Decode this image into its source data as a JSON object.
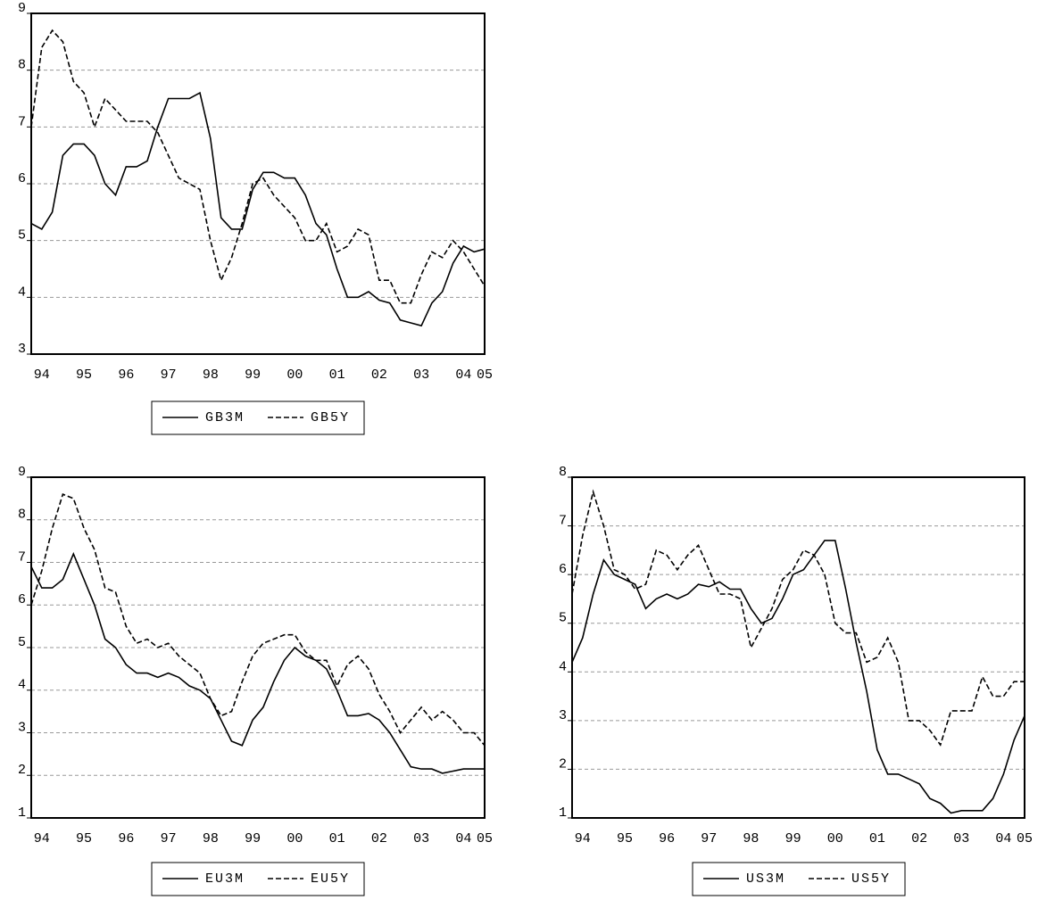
{
  "chart_data": [
    {
      "type": "line",
      "categories": [
        null,
        "94",
        null,
        null,
        null,
        "95",
        null,
        null,
        null,
        "96",
        null,
        null,
        null,
        "97",
        null,
        null,
        null,
        "98",
        null,
        null,
        null,
        "99",
        null,
        null,
        null,
        "00",
        null,
        null,
        null,
        "01",
        null,
        null,
        null,
        "02",
        null,
        null,
        null,
        "03",
        null,
        null,
        null,
        "04",
        null,
        "05"
      ],
      "series": [
        {
          "name": "GB3M",
          "color": "#000000",
          "style": "solid",
          "values": [
            5.3,
            5.2,
            5.5,
            6.5,
            6.7,
            6.7,
            6.5,
            6.0,
            5.8,
            6.3,
            6.3,
            6.4,
            7.0,
            7.5,
            7.5,
            7.5,
            7.6,
            6.8,
            5.4,
            5.2,
            5.2,
            5.9,
            6.2,
            6.2,
            6.1,
            6.1,
            5.8,
            5.3,
            5.1,
            4.5,
            4.0,
            4.0,
            4.1,
            3.95,
            3.9,
            3.6,
            3.55,
            3.5,
            3.9,
            4.1,
            4.6,
            4.9,
            4.8,
            4.85
          ]
        },
        {
          "name": "GB5Y",
          "color": "#000000",
          "style": "dashed",
          "values": [
            7.0,
            8.4,
            8.7,
            8.5,
            7.8,
            7.6,
            7.0,
            7.5,
            7.3,
            7.1,
            7.1,
            7.1,
            6.9,
            6.5,
            6.1,
            6.0,
            5.9,
            5.0,
            4.3,
            4.7,
            5.3,
            6.0,
            6.1,
            5.8,
            5.6,
            5.4,
            5.0,
            5.0,
            5.3,
            4.8,
            4.9,
            5.2,
            5.1,
            4.3,
            4.3,
            3.9,
            3.9,
            4.4,
            4.8,
            4.7,
            5.0,
            4.8,
            4.5,
            4.2
          ]
        }
      ],
      "ylim": [
        3,
        9
      ],
      "yticks": [
        3,
        4,
        5,
        6,
        7,
        8,
        9
      ],
      "grid": true
    },
    {
      "type": "line",
      "categories": [
        null,
        "94",
        null,
        null,
        null,
        "95",
        null,
        null,
        null,
        "96",
        null,
        null,
        null,
        "97",
        null,
        null,
        null,
        "98",
        null,
        null,
        null,
        "99",
        null,
        null,
        null,
        "00",
        null,
        null,
        null,
        "01",
        null,
        null,
        null,
        "02",
        null,
        null,
        null,
        "03",
        null,
        null,
        null,
        "04",
        null,
        "05"
      ],
      "series": [
        {
          "name": "EU3M",
          "color": "#000000",
          "style": "solid",
          "values": [
            6.9,
            6.4,
            6.4,
            6.6,
            7.2,
            6.6,
            6.0,
            5.2,
            5.0,
            4.6,
            4.4,
            4.4,
            4.3,
            4.4,
            4.3,
            4.1,
            4.0,
            3.8,
            3.3,
            2.8,
            2.7,
            3.3,
            3.6,
            4.2,
            4.7,
            5.0,
            4.8,
            4.7,
            4.5,
            4.0,
            3.4,
            3.4,
            3.45,
            3.3,
            3.0,
            2.6,
            2.2,
            2.15,
            2.15,
            2.05,
            2.1,
            2.15,
            2.15,
            2.15
          ]
        },
        {
          "name": "EU5Y",
          "color": "#000000",
          "style": "dashed",
          "values": [
            6.0,
            6.8,
            7.8,
            8.6,
            8.5,
            7.8,
            7.3,
            6.4,
            6.3,
            5.5,
            5.1,
            5.2,
            5.0,
            5.1,
            4.8,
            4.6,
            4.4,
            3.8,
            3.4,
            3.5,
            4.2,
            4.8,
            5.1,
            5.2,
            5.3,
            5.3,
            4.9,
            4.7,
            4.7,
            4.1,
            4.6,
            4.8,
            4.5,
            3.9,
            3.5,
            3.0,
            3.3,
            3.6,
            3.3,
            3.5,
            3.3,
            3.0,
            3.0,
            2.7
          ]
        }
      ],
      "ylim": [
        1,
        9
      ],
      "yticks": [
        1,
        2,
        3,
        4,
        5,
        6,
        7,
        8,
        9
      ],
      "grid": true
    },
    {
      "type": "line",
      "categories": [
        null,
        "94",
        null,
        null,
        null,
        "95",
        null,
        null,
        null,
        "96",
        null,
        null,
        null,
        "97",
        null,
        null,
        null,
        "98",
        null,
        null,
        null,
        "99",
        null,
        null,
        null,
        "00",
        null,
        null,
        null,
        "01",
        null,
        null,
        null,
        "02",
        null,
        null,
        null,
        "03",
        null,
        null,
        null,
        "04",
        null,
        "05"
      ],
      "series": [
        {
          "name": "US3M",
          "color": "#000000",
          "style": "solid",
          "values": [
            4.2,
            4.7,
            5.6,
            6.3,
            6.0,
            5.9,
            5.8,
            5.3,
            5.5,
            5.6,
            5.5,
            5.6,
            5.8,
            5.75,
            5.85,
            5.7,
            5.7,
            5.3,
            5.0,
            5.1,
            5.5,
            6.0,
            6.1,
            6.4,
            6.7,
            6.7,
            5.7,
            4.6,
            3.6,
            2.4,
            1.9,
            1.9,
            1.8,
            1.7,
            1.4,
            1.3,
            1.1,
            1.15,
            1.15,
            1.15,
            1.4,
            1.9,
            2.6,
            3.1
          ]
        },
        {
          "name": "US5Y",
          "color": "#000000",
          "style": "dashed",
          "values": [
            5.6,
            6.8,
            7.7,
            7.0,
            6.1,
            6.0,
            5.7,
            5.8,
            6.5,
            6.4,
            6.1,
            6.4,
            6.6,
            6.1,
            5.6,
            5.6,
            5.5,
            4.5,
            4.9,
            5.3,
            5.9,
            6.1,
            6.5,
            6.4,
            6.0,
            5.0,
            4.8,
            4.8,
            4.2,
            4.3,
            4.7,
            4.2,
            3.0,
            3.0,
            2.8,
            2.5,
            3.2,
            3.2,
            3.2,
            3.9,
            3.5,
            3.5,
            3.8,
            3.8
          ]
        }
      ],
      "ylim": [
        1,
        8
      ],
      "yticks": [
        1,
        2,
        3,
        4,
        5,
        6,
        7,
        8
      ],
      "grid": true
    }
  ]
}
